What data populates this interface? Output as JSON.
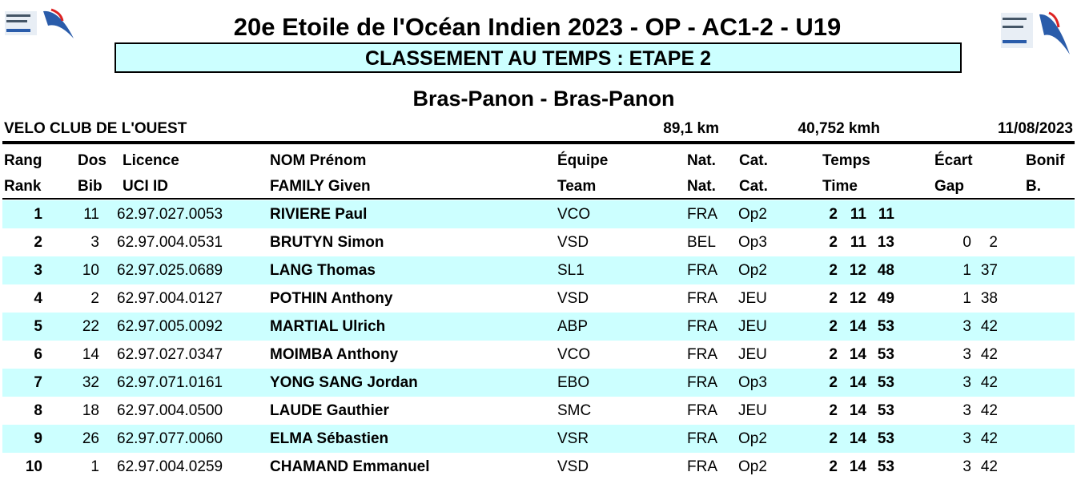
{
  "header": {
    "title": "20e Etoile de l'Océan Indien 2023 - OP - AC1-2 - U19",
    "subtitle": "CLASSEMENT AU TEMPS : ETAPE 2",
    "stage": "Bras-Panon - Bras-Panon"
  },
  "info": {
    "club": "VELO CLUB DE L'OUEST",
    "distance": "89,1 km",
    "speed": "40,752 kmh",
    "date": "11/08/2023"
  },
  "table": {
    "columns": [
      {
        "top": "Rang",
        "bottom": "Rank"
      },
      {
        "top": "Dos",
        "bottom": "Bib"
      },
      {
        "top": "Licence",
        "bottom": "UCI ID"
      },
      {
        "top": "NOM Prénom",
        "bottom": "FAMILY Given"
      },
      {
        "top": "Équipe",
        "bottom": "Team"
      },
      {
        "top": "Nat.",
        "bottom": "Nat."
      },
      {
        "top": "Cat.",
        "bottom": "Cat."
      },
      {
        "top": "Temps",
        "bottom": "Time"
      },
      {
        "top": "Écart",
        "bottom": "Gap"
      },
      {
        "top": "Bonif",
        "bottom": "B."
      }
    ],
    "rows": [
      {
        "rank": "1",
        "bib": "11",
        "licence": "62.97.027.0053",
        "name": "RIVIERE Paul",
        "team": "VCO",
        "nat": "FRA",
        "cat": "Op2",
        "time": [
          "2",
          "11",
          "11"
        ]
      },
      {
        "rank": "2",
        "bib": "3",
        "licence": "62.97.004.0531",
        "name": "BRUTYN Simon",
        "team": "VSD",
        "nat": "BEL",
        "cat": "Op3",
        "time": [
          "2",
          "11",
          "13"
        ],
        "gap": [
          "0",
          "2"
        ]
      },
      {
        "rank": "3",
        "bib": "10",
        "licence": "62.97.025.0689",
        "name": "LANG Thomas",
        "team": "SL1",
        "nat": "FRA",
        "cat": "Op2",
        "time": [
          "2",
          "12",
          "48"
        ],
        "gap": [
          "1",
          "37"
        ]
      },
      {
        "rank": "4",
        "bib": "2",
        "licence": "62.97.004.0127",
        "name": "POTHIN Anthony",
        "team": "VSD",
        "nat": "FRA",
        "cat": "JEU",
        "time": [
          "2",
          "12",
          "49"
        ],
        "gap": [
          "1",
          "38"
        ]
      },
      {
        "rank": "5",
        "bib": "22",
        "licence": "62.97.005.0092",
        "name": "MARTIAL Ulrich",
        "team": "ABP",
        "nat": "FRA",
        "cat": "JEU",
        "time": [
          "2",
          "14",
          "53"
        ],
        "gap": [
          "3",
          "42"
        ]
      },
      {
        "rank": "6",
        "bib": "14",
        "licence": "62.97.027.0347",
        "name": "MOIMBA Anthony",
        "team": "VCO",
        "nat": "FRA",
        "cat": "JEU",
        "time": [
          "2",
          "14",
          "53"
        ],
        "gap": [
          "3",
          "42"
        ]
      },
      {
        "rank": "7",
        "bib": "32",
        "licence": "62.97.071.0161",
        "name": "YONG SANG Jordan",
        "team": "EBO",
        "nat": "FRA",
        "cat": "Op3",
        "time": [
          "2",
          "14",
          "53"
        ],
        "gap": [
          "3",
          "42"
        ]
      },
      {
        "rank": "8",
        "bib": "18",
        "licence": "62.97.004.0500",
        "name": "LAUDE Gauthier",
        "team": "SMC",
        "nat": "FRA",
        "cat": "JEU",
        "time": [
          "2",
          "14",
          "53"
        ],
        "gap": [
          "3",
          "42"
        ]
      },
      {
        "rank": "9",
        "bib": "26",
        "licence": "62.97.077.0060",
        "name": "ELMA Sébastien",
        "team": "VSR",
        "nat": "FRA",
        "cat": "Op2",
        "time": [
          "2",
          "14",
          "53"
        ],
        "gap": [
          "3",
          "42"
        ]
      },
      {
        "rank": "10",
        "bib": "1",
        "licence": "62.97.004.0259",
        "name": "CHAMAND Emmanuel",
        "team": "VSD",
        "nat": "FRA",
        "cat": "Op2",
        "time": [
          "2",
          "14",
          "53"
        ],
        "gap": [
          "3",
          "42"
        ]
      }
    ]
  }
}
